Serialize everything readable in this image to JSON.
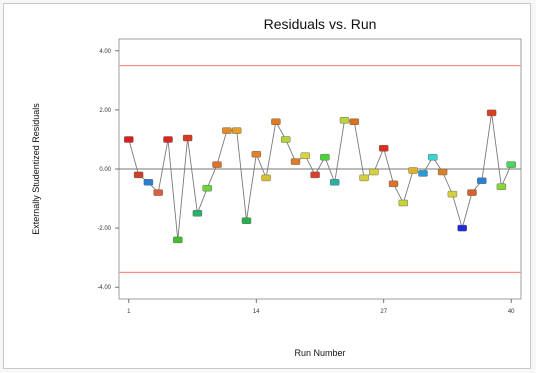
{
  "chart_data": {
    "type": "scatter",
    "title": "Residuals vs. Run",
    "xlabel": "Run Number",
    "ylabel": "Externally Studentized Residuals",
    "xlim": [
      0,
      41
    ],
    "ylim": [
      -4.4,
      4.4
    ],
    "x_ticks": [
      1,
      14,
      27,
      40
    ],
    "x_tick_labels": [
      "1",
      "14",
      "27",
      "40"
    ],
    "y_ticks": [
      4,
      2,
      0,
      -2,
      -4
    ],
    "y_tick_labels": [
      "4.00",
      "2.00",
      "0.00",
      "-2.00",
      "-4.00"
    ],
    "limits": [
      3.5,
      -3.5
    ],
    "limit_color": "#ff8a8a",
    "zero_line": true,
    "connect_points": true,
    "line_color": "#7a7a7a",
    "x": [
      1,
      2,
      3,
      4,
      5,
      6,
      7,
      8,
      9,
      10,
      11,
      12,
      13,
      14,
      15,
      16,
      17,
      18,
      19,
      20,
      21,
      22,
      23,
      24,
      25,
      26,
      27,
      28,
      29,
      30,
      31,
      32,
      33,
      34,
      35,
      36,
      37,
      38,
      39,
      40
    ],
    "y": [
      1.0,
      -0.2,
      -0.45,
      -0.8,
      1.0,
      -2.4,
      1.05,
      -1.5,
      -0.65,
      0.15,
      1.3,
      1.3,
      -1.75,
      0.5,
      -0.3,
      1.6,
      1.0,
      0.25,
      0.45,
      -0.2,
      0.4,
      -0.45,
      1.65,
      1.6,
      -0.3,
      -0.1,
      0.7,
      -0.5,
      -1.15,
      -0.05,
      -0.15,
      0.4,
      -0.1,
      -0.85,
      -2.0,
      -0.8,
      -0.4,
      1.9,
      -0.6,
      0.15
    ],
    "point_colors": [
      "#d81e1e",
      "#c8402a",
      "#2a7fd4",
      "#d8603a",
      "#d8261e",
      "#3fbf2a",
      "#d83a1e",
      "#2ab06a",
      "#6cd43a",
      "#e0702a",
      "#e08a2a",
      "#e0a02a",
      "#2ab04a",
      "#e0802a",
      "#d8c030",
      "#e07a20",
      "#b0d43a",
      "#e07a2a",
      "#d8d43a",
      "#d8402a",
      "#4ad43a",
      "#2ab0a0",
      "#b8d43a",
      "#d8701e",
      "#d8d03a",
      "#d8d03a",
      "#d8301e",
      "#e0702a",
      "#c8d03a",
      "#e0b02a",
      "#2a9ad4",
      "#3ad4d4",
      "#d8802a",
      "#d8d03a",
      "#1e2ad8",
      "#d8602a",
      "#2a80d4",
      "#d8401e",
      "#8ad43a",
      "#4ad45a"
    ]
  }
}
